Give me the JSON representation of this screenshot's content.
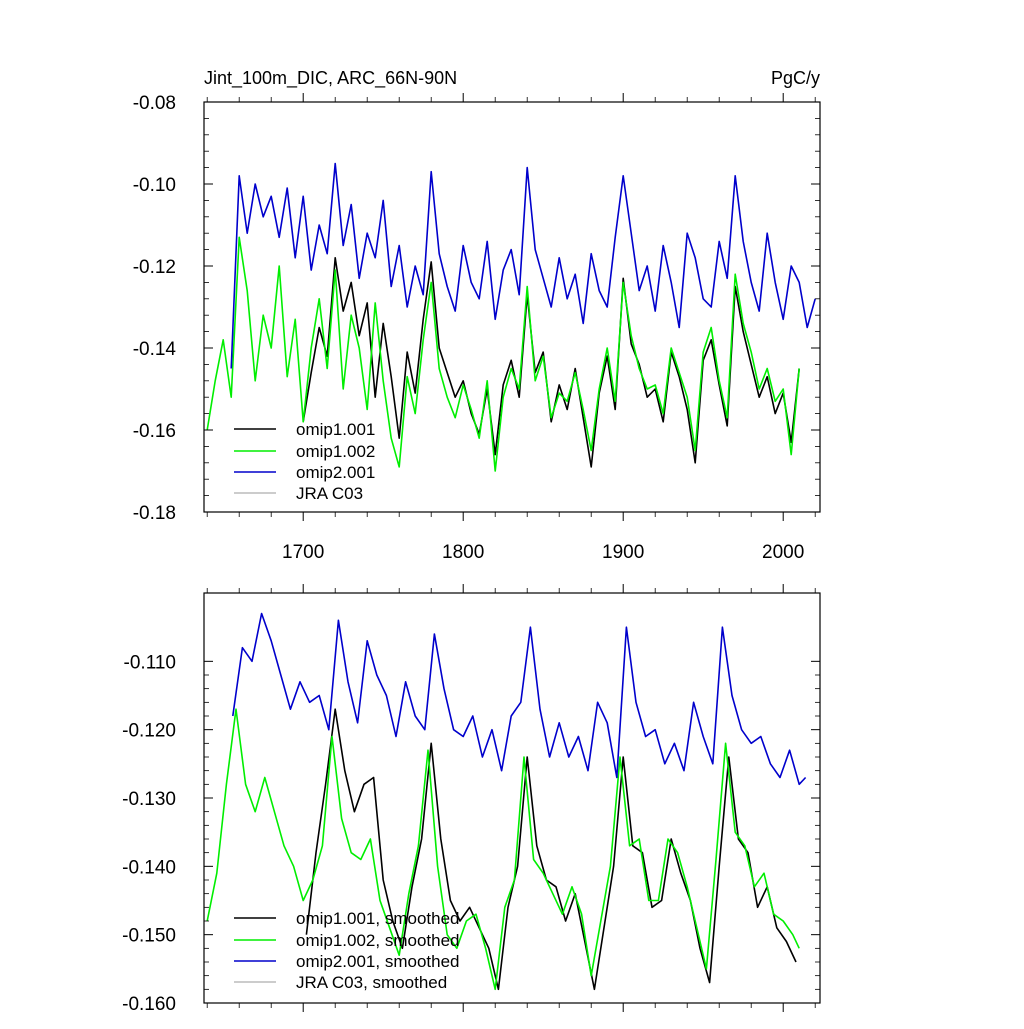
{
  "chart_data": [
    {
      "type": "line",
      "title_left": "Jint_100m_DIC, ARC_66N-90N",
      "title_right": "PgC/y",
      "xlim": [
        1638,
        2023
      ],
      "ylim": [
        -0.18,
        -0.08
      ],
      "x_ticks": [
        1700,
        1800,
        1900,
        2000
      ],
      "x_tick_labels": [
        "1700",
        "1800",
        "1900",
        "2000"
      ],
      "y_ticks": [
        -0.18,
        -0.16,
        -0.14,
        -0.12,
        -0.1,
        -0.08
      ],
      "y_tick_labels": [
        "-0.18",
        "-0.16",
        "-0.14",
        "-0.12",
        "-0.10",
        "-0.08"
      ],
      "legend": [
        {
          "label": "omip1.001",
          "color": "#000000"
        },
        {
          "label": "omip1.002",
          "color": "#00ee00"
        },
        {
          "label": "omip2.001",
          "color": "#0000cc"
        },
        {
          "label": "JRA C03",
          "color": "#bbbbbb"
        }
      ],
      "series": [
        {
          "name": "omip1.001",
          "color": "#000000",
          "x": [
            1700,
            1705,
            1710,
            1715,
            1720,
            1725,
            1730,
            1735,
            1740,
            1745,
            1750,
            1755,
            1760,
            1765,
            1770,
            1775,
            1780,
            1785,
            1790,
            1795,
            1800,
            1805,
            1810,
            1815,
            1820,
            1825,
            1830,
            1835,
            1840,
            1845,
            1850,
            1855,
            1860,
            1865,
            1870,
            1875,
            1880,
            1885,
            1890,
            1895,
            1900,
            1905,
            1910,
            1915,
            1920,
            1925,
            1930,
            1935,
            1940,
            1945,
            1950,
            1955,
            1960,
            1965,
            1970,
            1975,
            1980,
            1985,
            1990,
            1995,
            2000,
            2005,
            2010
          ],
          "y": [
            -0.158,
            -0.146,
            -0.135,
            -0.142,
            -0.118,
            -0.131,
            -0.124,
            -0.137,
            -0.129,
            -0.152,
            -0.134,
            -0.147,
            -0.162,
            -0.141,
            -0.151,
            -0.133,
            -0.119,
            -0.14,
            -0.146,
            -0.152,
            -0.148,
            -0.156,
            -0.161,
            -0.15,
            -0.166,
            -0.149,
            -0.143,
            -0.152,
            -0.127,
            -0.146,
            -0.141,
            -0.158,
            -0.149,
            -0.155,
            -0.145,
            -0.157,
            -0.169,
            -0.151,
            -0.142,
            -0.155,
            -0.123,
            -0.139,
            -0.144,
            -0.152,
            -0.15,
            -0.158,
            -0.141,
            -0.147,
            -0.155,
            -0.168,
            -0.143,
            -0.138,
            -0.149,
            -0.159,
            -0.125,
            -0.136,
            -0.144,
            -0.152,
            -0.147,
            -0.156,
            -0.151,
            -0.163,
            -0.145
          ]
        },
        {
          "name": "omip1.002",
          "color": "#00ee00",
          "x": [
            1640,
            1645,
            1650,
            1655,
            1660,
            1665,
            1670,
            1675,
            1680,
            1685,
            1690,
            1695,
            1700,
            1705,
            1710,
            1715,
            1720,
            1725,
            1730,
            1735,
            1740,
            1745,
            1750,
            1755,
            1760,
            1765,
            1770,
            1775,
            1780,
            1785,
            1790,
            1795,
            1800,
            1805,
            1810,
            1815,
            1820,
            1825,
            1830,
            1835,
            1840,
            1845,
            1850,
            1855,
            1860,
            1865,
            1870,
            1875,
            1880,
            1885,
            1890,
            1895,
            1900,
            1905,
            1910,
            1915,
            1920,
            1925,
            1930,
            1935,
            1940,
            1945,
            1950,
            1955,
            1960,
            1965,
            1970,
            1975,
            1980,
            1985,
            1990,
            1995,
            2000,
            2005,
            2010
          ],
          "y": [
            -0.16,
            -0.148,
            -0.138,
            -0.152,
            -0.113,
            -0.126,
            -0.148,
            -0.132,
            -0.14,
            -0.12,
            -0.147,
            -0.133,
            -0.158,
            -0.14,
            -0.128,
            -0.145,
            -0.121,
            -0.15,
            -0.132,
            -0.14,
            -0.155,
            -0.129,
            -0.148,
            -0.162,
            -0.169,
            -0.147,
            -0.156,
            -0.138,
            -0.124,
            -0.145,
            -0.152,
            -0.157,
            -0.149,
            -0.155,
            -0.162,
            -0.148,
            -0.17,
            -0.152,
            -0.145,
            -0.15,
            -0.125,
            -0.148,
            -0.142,
            -0.157,
            -0.151,
            -0.153,
            -0.146,
            -0.155,
            -0.165,
            -0.15,
            -0.14,
            -0.153,
            -0.124,
            -0.137,
            -0.145,
            -0.15,
            -0.149,
            -0.156,
            -0.14,
            -0.146,
            -0.152,
            -0.165,
            -0.141,
            -0.135,
            -0.148,
            -0.157,
            -0.122,
            -0.134,
            -0.141,
            -0.15,
            -0.145,
            -0.153,
            -0.15,
            -0.166,
            -0.145
          ]
        },
        {
          "name": "omip2.001",
          "color": "#0000cc",
          "x": [
            1655,
            1660,
            1665,
            1670,
            1675,
            1680,
            1685,
            1690,
            1695,
            1700,
            1705,
            1710,
            1715,
            1720,
            1725,
            1730,
            1735,
            1740,
            1745,
            1750,
            1755,
            1760,
            1765,
            1770,
            1775,
            1780,
            1785,
            1790,
            1795,
            1800,
            1805,
            1810,
            1815,
            1820,
            1825,
            1830,
            1835,
            1840,
            1845,
            1850,
            1855,
            1860,
            1865,
            1870,
            1875,
            1880,
            1885,
            1890,
            1895,
            1900,
            1905,
            1910,
            1915,
            1920,
            1925,
            1930,
            1935,
            1940,
            1945,
            1950,
            1955,
            1960,
            1965,
            1970,
            1975,
            1980,
            1985,
            1990,
            1995,
            2000,
            2005,
            2010,
            2015,
            2020
          ],
          "y": [
            -0.145,
            -0.098,
            -0.112,
            -0.1,
            -0.108,
            -0.103,
            -0.113,
            -0.101,
            -0.118,
            -0.103,
            -0.121,
            -0.11,
            -0.117,
            -0.095,
            -0.115,
            -0.105,
            -0.123,
            -0.112,
            -0.118,
            -0.104,
            -0.125,
            -0.115,
            -0.13,
            -0.12,
            -0.127,
            -0.097,
            -0.117,
            -0.125,
            -0.131,
            -0.115,
            -0.124,
            -0.128,
            -0.114,
            -0.133,
            -0.121,
            -0.116,
            -0.127,
            -0.096,
            -0.116,
            -0.123,
            -0.13,
            -0.118,
            -0.128,
            -0.122,
            -0.134,
            -0.117,
            -0.126,
            -0.13,
            -0.113,
            -0.098,
            -0.112,
            -0.126,
            -0.12,
            -0.131,
            -0.115,
            -0.124,
            -0.135,
            -0.112,
            -0.118,
            -0.128,
            -0.13,
            -0.114,
            -0.123,
            -0.098,
            -0.114,
            -0.124,
            -0.131,
            -0.112,
            -0.124,
            -0.133,
            -0.12,
            -0.124,
            -0.135,
            -0.128
          ]
        },
        {
          "name": "JRA C03",
          "color": "#bbbbbb",
          "x": [],
          "y": []
        }
      ]
    },
    {
      "type": "line",
      "xlim": [
        1638,
        2023
      ],
      "ylim": [
        -0.16,
        -0.1
      ],
      "x_ticks": [
        1700,
        1800,
        1900,
        2000
      ],
      "y_ticks": [
        -0.16,
        -0.15,
        -0.14,
        -0.13,
        -0.12,
        -0.11
      ],
      "y_tick_labels": [
        "-0.160",
        "-0.150",
        "-0.140",
        "-0.130",
        "-0.120",
        "-0.110"
      ],
      "legend": [
        {
          "label": "omip1.001, smoothed",
          "color": "#000000"
        },
        {
          "label": "omip1.002, smoothed",
          "color": "#00ee00"
        },
        {
          "label": "omip2.001, smoothed",
          "color": "#0000cc"
        },
        {
          "label": "JRA C03, smoothed",
          "color": "#bbbbbb"
        }
      ],
      "series": [
        {
          "name": "omip1.001, smoothed",
          "color": "#000000",
          "x": [
            1702,
            1708,
            1714,
            1720,
            1726,
            1732,
            1738,
            1744,
            1750,
            1756,
            1762,
            1768,
            1774,
            1780,
            1786,
            1792,
            1798,
            1804,
            1810,
            1816,
            1822,
            1828,
            1834,
            1840,
            1846,
            1852,
            1858,
            1864,
            1870,
            1876,
            1882,
            1888,
            1894,
            1900,
            1906,
            1912,
            1918,
            1924,
            1930,
            1936,
            1942,
            1948,
            1954,
            1960,
            1966,
            1972,
            1978,
            1984,
            1990,
            1996,
            2002,
            2008
          ],
          "y": [
            -0.15,
            -0.138,
            -0.128,
            -0.117,
            -0.126,
            -0.132,
            -0.128,
            -0.127,
            -0.142,
            -0.148,
            -0.152,
            -0.143,
            -0.136,
            -0.122,
            -0.136,
            -0.145,
            -0.148,
            -0.146,
            -0.149,
            -0.152,
            -0.158,
            -0.146,
            -0.14,
            -0.124,
            -0.137,
            -0.142,
            -0.143,
            -0.148,
            -0.144,
            -0.151,
            -0.158,
            -0.149,
            -0.14,
            -0.124,
            -0.137,
            -0.138,
            -0.146,
            -0.145,
            -0.136,
            -0.141,
            -0.145,
            -0.152,
            -0.157,
            -0.14,
            -0.124,
            -0.136,
            -0.138,
            -0.146,
            -0.143,
            -0.149,
            -0.151,
            -0.154
          ]
        },
        {
          "name": "omip1.002, smoothed",
          "color": "#00ee00",
          "x": [
            1640,
            1646,
            1652,
            1658,
            1664,
            1670,
            1676,
            1682,
            1688,
            1694,
            1700,
            1706,
            1712,
            1718,
            1724,
            1730,
            1736,
            1742,
            1748,
            1754,
            1760,
            1766,
            1772,
            1778,
            1784,
            1790,
            1796,
            1802,
            1808,
            1814,
            1820,
            1826,
            1832,
            1838,
            1844,
            1850,
            1856,
            1862,
            1868,
            1874,
            1880,
            1886,
            1892,
            1898,
            1904,
            1910,
            1916,
            1922,
            1928,
            1934,
            1940,
            1946,
            1952,
            1958,
            1964,
            1970,
            1976,
            1982,
            1988,
            1994,
            2000,
            2006,
            2010
          ],
          "y": [
            -0.148,
            -0.141,
            -0.128,
            -0.117,
            -0.128,
            -0.132,
            -0.127,
            -0.132,
            -0.137,
            -0.14,
            -0.145,
            -0.142,
            -0.137,
            -0.121,
            -0.133,
            -0.138,
            -0.139,
            -0.136,
            -0.145,
            -0.149,
            -0.153,
            -0.144,
            -0.137,
            -0.123,
            -0.14,
            -0.15,
            -0.152,
            -0.148,
            -0.147,
            -0.152,
            -0.158,
            -0.146,
            -0.142,
            -0.124,
            -0.139,
            -0.141,
            -0.144,
            -0.147,
            -0.143,
            -0.147,
            -0.156,
            -0.148,
            -0.14,
            -0.124,
            -0.137,
            -0.136,
            -0.145,
            -0.145,
            -0.136,
            -0.138,
            -0.143,
            -0.149,
            -0.155,
            -0.139,
            -0.122,
            -0.135,
            -0.137,
            -0.143,
            -0.141,
            -0.147,
            -0.148,
            -0.15,
            -0.152
          ]
        },
        {
          "name": "omip2.001, smoothed",
          "color": "#0000cc",
          "x": [
            1656,
            1662,
            1668,
            1674,
            1680,
            1686,
            1692,
            1698,
            1704,
            1710,
            1716,
            1722,
            1728,
            1734,
            1740,
            1746,
            1752,
            1758,
            1764,
            1770,
            1776,
            1782,
            1788,
            1794,
            1800,
            1806,
            1812,
            1818,
            1824,
            1830,
            1836,
            1842,
            1848,
            1854,
            1860,
            1866,
            1872,
            1878,
            1884,
            1890,
            1896,
            1902,
            1908,
            1914,
            1920,
            1926,
            1932,
            1938,
            1944,
            1950,
            1956,
            1962,
            1968,
            1974,
            1980,
            1986,
            1992,
            1998,
            2004,
            2010,
            2014
          ],
          "y": [
            -0.118,
            -0.108,
            -0.11,
            -0.103,
            -0.107,
            -0.112,
            -0.117,
            -0.113,
            -0.116,
            -0.115,
            -0.12,
            -0.104,
            -0.113,
            -0.119,
            -0.107,
            -0.112,
            -0.115,
            -0.121,
            -0.113,
            -0.118,
            -0.12,
            -0.106,
            -0.114,
            -0.12,
            -0.121,
            -0.118,
            -0.124,
            -0.12,
            -0.126,
            -0.118,
            -0.116,
            -0.105,
            -0.117,
            -0.124,
            -0.119,
            -0.124,
            -0.121,
            -0.126,
            -0.116,
            -0.119,
            -0.127,
            -0.105,
            -0.116,
            -0.121,
            -0.12,
            -0.125,
            -0.122,
            -0.126,
            -0.116,
            -0.121,
            -0.125,
            -0.105,
            -0.115,
            -0.12,
            -0.122,
            -0.121,
            -0.125,
            -0.127,
            -0.123,
            -0.128,
            -0.127
          ]
        },
        {
          "name": "JRA C03, smoothed",
          "color": "#bbbbbb",
          "x": [],
          "y": []
        }
      ]
    }
  ]
}
